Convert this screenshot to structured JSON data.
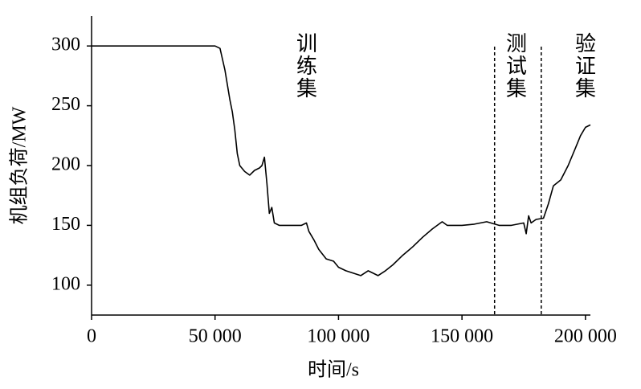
{
  "chart_data": {
    "type": "line",
    "xlabel": "时间/s",
    "ylabel": "机组负荷/MW",
    "annotations": [
      "训练集",
      "测试集",
      "验证集"
    ],
    "split_lines": [
      163200,
      182100
    ],
    "xlim": [
      0,
      202000
    ],
    "ylim": [
      75,
      325
    ],
    "xticks": [
      0,
      {
        "value": 50000,
        "label": "50 000"
      },
      {
        "value": 100000,
        "label": "100 000"
      },
      {
        "value": 150000,
        "label": "150 000"
      },
      {
        "value": 200000,
        "label": "200 000"
      }
    ],
    "yticks": [
      100,
      150,
      200,
      250,
      300
    ],
    "grid": false,
    "series": [
      {
        "name": "机组负荷",
        "color": "#000000",
        "x": [
          0,
          50000,
          52000,
          54000,
          56000,
          57000,
          58000,
          59000,
          60000,
          62000,
          64000,
          66000,
          68000,
          69000,
          70000,
          71000,
          72000,
          73000,
          74000,
          76000,
          80000,
          85000,
          87000,
          88000,
          90000,
          92000,
          95000,
          98000,
          100000,
          103000,
          106000,
          109000,
          112000,
          114000,
          116000,
          119000,
          122000,
          126000,
          130000,
          134000,
          138000,
          142000,
          144000,
          150000,
          155000,
          160000,
          165000,
          170000,
          175000,
          176000,
          177000,
          178000,
          180000,
          183000,
          185000,
          187000,
          190000,
          193000,
          196000,
          198000,
          200000,
          202000
        ],
        "values": [
          300,
          300,
          298,
          280,
          255,
          245,
          230,
          210,
          200,
          195,
          192,
          196,
          198,
          200,
          207,
          185,
          160,
          165,
          152,
          150,
          150,
          150,
          152,
          145,
          138,
          130,
          122,
          120,
          115,
          112,
          110,
          108,
          112,
          110,
          108,
          112,
          117,
          125,
          132,
          140,
          147,
          153,
          150,
          150,
          151,
          153,
          150,
          150,
          152,
          143,
          158,
          152,
          155,
          156,
          168,
          183,
          188,
          200,
          215,
          225,
          232,
          234
        ]
      }
    ]
  }
}
